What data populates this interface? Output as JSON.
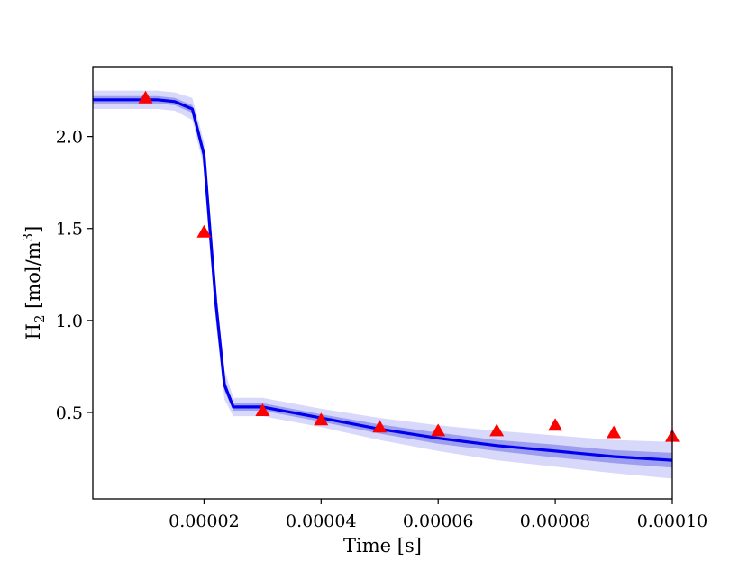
{
  "chart_data": {
    "type": "line",
    "title": "",
    "xlabel": "Time [s]",
    "ylabel": "H$_2$ [mol/m$^3$]",
    "ylabel_parts": {
      "base": "H",
      "sub": "2",
      "pre_sup": " [mol/m",
      "sup": "3",
      "post": "]"
    },
    "xlim": [
      1e-06,
      0.0001
    ],
    "ylim": [
      0.03,
      2.38
    ],
    "xticks": [
      2e-05,
      4e-05,
      6e-05,
      8e-05,
      0.0001
    ],
    "xtick_labels": [
      "0.00002",
      "0.00004",
      "0.00006",
      "0.00008",
      "0.00010"
    ],
    "yticks": [
      0.5,
      1.0,
      1.5,
      2.0
    ],
    "ytick_labels": [
      "0.5",
      "1.0",
      "1.5",
      "2.0"
    ],
    "grid": false,
    "series": [
      {
        "kind": "line",
        "color": "#0000ee",
        "x": [
          1e-06,
          1.2e-05,
          1.5e-05,
          1.8e-05,
          2e-05,
          2.2e-05,
          2.35e-05,
          2.5e-05,
          3e-05,
          4e-05,
          5e-05,
          6e-05,
          7e-05,
          8e-05,
          9e-05,
          0.0001
        ],
        "y": [
          2.2,
          2.2,
          2.19,
          2.15,
          1.9,
          1.1,
          0.65,
          0.53,
          0.53,
          0.47,
          0.41,
          0.36,
          0.32,
          0.29,
          0.26,
          0.24
        ],
        "band_inner": {
          "color": "#7070e8",
          "opacity": 0.55,
          "half_width": [
            0.02,
            0.02,
            0.02,
            0.02,
            0.03,
            0.04,
            0.03,
            0.02,
            0.02,
            0.02,
            0.025,
            0.03,
            0.03,
            0.035,
            0.035,
            0.04
          ]
        },
        "band_outer": {
          "color": "#b8b8f8",
          "opacity": 0.55,
          "half_width": [
            0.05,
            0.05,
            0.05,
            0.06,
            0.07,
            0.1,
            0.08,
            0.05,
            0.05,
            0.05,
            0.06,
            0.07,
            0.08,
            0.085,
            0.09,
            0.1
          ]
        }
      },
      {
        "kind": "scatter",
        "marker": "triangle",
        "color": "#ff0000",
        "x": [
          1e-05,
          2e-05,
          3e-05,
          4e-05,
          5e-05,
          6e-05,
          7e-05,
          8e-05,
          9e-05,
          0.0001
        ],
        "y": [
          2.21,
          1.48,
          0.51,
          0.46,
          0.42,
          0.4,
          0.4,
          0.43,
          0.39,
          0.37
        ]
      }
    ]
  }
}
